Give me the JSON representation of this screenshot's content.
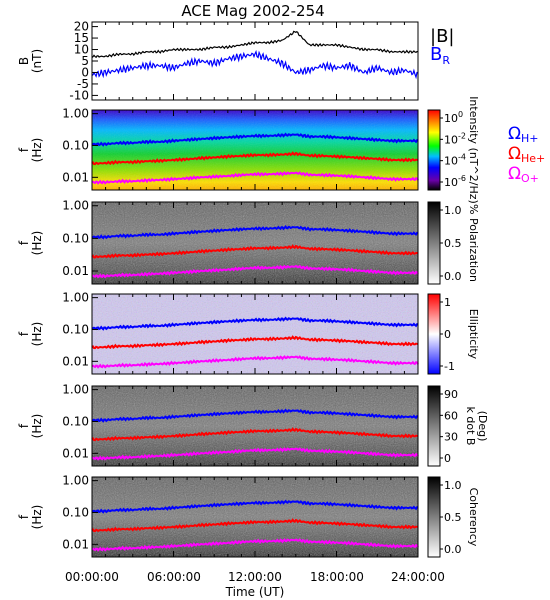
{
  "title": "ACE Mag 2002-254",
  "xlabel": "Time (UT)",
  "xticks": [
    "00:00:00",
    "06:00:00",
    "12:00:00",
    "18:00:00",
    "24:00:00"
  ],
  "colors": {
    "total": "#000000",
    "br": "#0000ff",
    "h": "#0000ff",
    "he": "#ff0000",
    "o": "#ff00ff"
  },
  "chart_data": [
    {
      "type": "line",
      "ylabel_main": "B",
      "ylabel_unit": "(nT)",
      "ylim": [
        -12,
        22
      ],
      "yticks": [
        "20",
        "15",
        "10",
        "5",
        "0",
        "-5",
        "-10"
      ],
      "x_hours": [
        0,
        1,
        2,
        3,
        4,
        5,
        6,
        7,
        8,
        9,
        10,
        11,
        12,
        13,
        14,
        15,
        16,
        17,
        18,
        19,
        20,
        21,
        22,
        23,
        24
      ],
      "series": [
        {
          "name": "|B|",
          "values": [
            7,
            7,
            8,
            8,
            9,
            9,
            10,
            10,
            10,
            11,
            11,
            12,
            13,
            13,
            14,
            18,
            12,
            12,
            12,
            11,
            10,
            10,
            9,
            9,
            9
          ]
        },
        {
          "name": "B",
          "subscript": "R",
          "values": [
            -1,
            0,
            1,
            2,
            3,
            3,
            2,
            4,
            5,
            4,
            6,
            7,
            8,
            6,
            4,
            0,
            1,
            3,
            2,
            3,
            0,
            2,
            0,
            1,
            -1
          ]
        }
      ]
    },
    {
      "type": "heatmap",
      "ylabel_main": "f",
      "ylabel_unit": "(Hz)",
      "yticks": [
        "1.00",
        "0.10",
        "0.01"
      ],
      "colorbar": "rainbow",
      "colorbar_ticks": [
        "10^0",
        "10^-2",
        "10^-4",
        "10^-6"
      ],
      "colorbar_label": "Intensity (nT^2/Hz)"
    },
    {
      "type": "heatmap",
      "ylabel_main": "f",
      "ylabel_unit": "(Hz)",
      "yticks": [
        "1.00",
        "0.10",
        "0.01"
      ],
      "colorbar": "gray",
      "colorbar_ticks": [
        "1.0",
        "0.5",
        "0.0"
      ],
      "colorbar_label": "% Polarization"
    },
    {
      "type": "heatmap",
      "ylabel_main": "f",
      "ylabel_unit": "(Hz)",
      "yticks": [
        "1.00",
        "0.10",
        "0.01"
      ],
      "colorbar": "bwr",
      "colorbar_ticks": [
        "1",
        "0",
        "-1"
      ],
      "colorbar_label": "Ellipticity"
    },
    {
      "type": "heatmap",
      "ylabel_main": "f",
      "ylabel_unit": "(Hz)",
      "yticks": [
        "1.00",
        "0.10",
        "0.01"
      ],
      "colorbar": "gray",
      "colorbar_ticks": [
        "90",
        "60",
        "30",
        "0"
      ],
      "colorbar_label_1": "k dot B",
      "colorbar_label_2": "(Deg)"
    },
    {
      "type": "heatmap",
      "ylabel_main": "f",
      "ylabel_unit": "(Hz)",
      "yticks": [
        "1.00",
        "0.10",
        "0.01"
      ],
      "colorbar": "gray",
      "colorbar_ticks": [
        "1.0",
        "0.5",
        "0.0"
      ],
      "colorbar_label": "Coherency"
    }
  ],
  "gyrofrequencies": {
    "x_hours": [
      0,
      1,
      2,
      3,
      4,
      5,
      6,
      7,
      8,
      9,
      10,
      11,
      12,
      13,
      14,
      15,
      16,
      17,
      18,
      19,
      20,
      21,
      22,
      23,
      24
    ],
    "H+_hz": [
      0.11,
      0.11,
      0.12,
      0.12,
      0.13,
      0.13,
      0.14,
      0.15,
      0.16,
      0.17,
      0.18,
      0.19,
      0.2,
      0.2,
      0.21,
      0.22,
      0.19,
      0.19,
      0.18,
      0.17,
      0.16,
      0.15,
      0.14,
      0.14,
      0.14
    ],
    "He+_hz": [
      0.027,
      0.028,
      0.03,
      0.03,
      0.032,
      0.033,
      0.035,
      0.037,
      0.04,
      0.042,
      0.045,
      0.047,
      0.05,
      0.05,
      0.052,
      0.055,
      0.048,
      0.047,
      0.045,
      0.043,
      0.04,
      0.038,
      0.035,
      0.035,
      0.035
    ],
    "O+_hz": [
      0.007,
      0.007,
      0.0075,
      0.0075,
      0.008,
      0.0083,
      0.0088,
      0.0093,
      0.01,
      0.0105,
      0.011,
      0.0118,
      0.0125,
      0.0125,
      0.013,
      0.0138,
      0.012,
      0.0118,
      0.0113,
      0.0108,
      0.01,
      0.0095,
      0.0088,
      0.0088,
      0.0088
    ]
  },
  "legend_top": {
    "b_total": "|B|",
    "br_main": "B",
    "br_sub": "R"
  },
  "legend_ions": {
    "omega": "Ω",
    "h": "H+",
    "he": "He+",
    "o": "O+"
  }
}
